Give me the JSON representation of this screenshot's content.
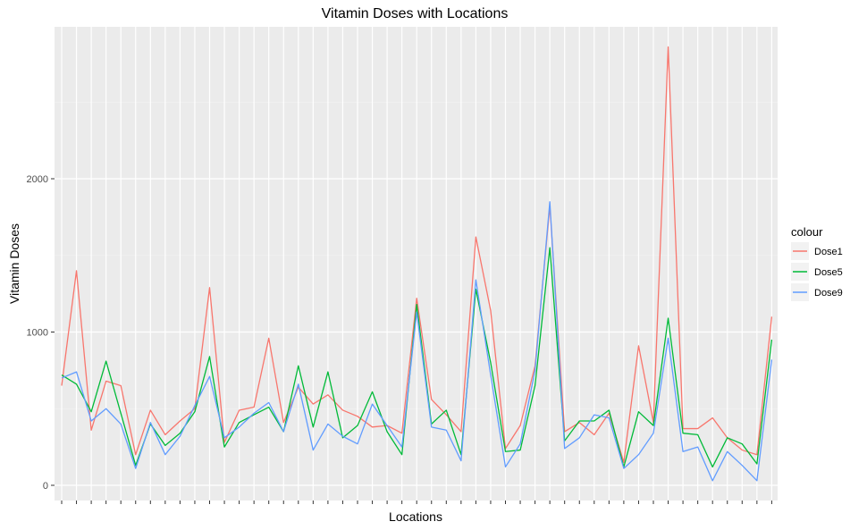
{
  "chart_data": {
    "type": "line",
    "title": "Vitamin Doses with Locations",
    "xlabel": "Locations",
    "ylabel": "Vitamin Doses",
    "ylim": [
      -100,
      3000
    ],
    "yticks": [
      0,
      1000,
      2000
    ],
    "grid": true,
    "legend": {
      "title": "colour",
      "position": "right"
    },
    "x_count": 49,
    "series": [
      {
        "name": "Dose1",
        "color": "#F8766D",
        "values": [
          650,
          1400,
          360,
          680,
          650,
          200,
          490,
          330,
          420,
          500,
          1290,
          280,
          490,
          510,
          960,
          410,
          640,
          530,
          590,
          490,
          450,
          380,
          390,
          340,
          1220,
          560,
          460,
          350,
          1620,
          1140,
          240,
          390,
          780,
          1820,
          350,
          410,
          330,
          470,
          150,
          910,
          410,
          2860,
          370,
          370,
          440,
          310,
          230,
          200,
          1100
        ]
      },
      {
        "name": "Dose5",
        "color": "#00BA38",
        "values": [
          720,
          660,
          480,
          810,
          470,
          130,
          400,
          260,
          340,
          480,
          840,
          250,
          410,
          460,
          510,
          350,
          780,
          380,
          740,
          310,
          390,
          610,
          350,
          200,
          1180,
          400,
          490,
          200,
          1280,
          800,
          220,
          230,
          650,
          1550,
          290,
          420,
          420,
          490,
          120,
          480,
          390,
          1090,
          340,
          330,
          120,
          310,
          270,
          140,
          950
        ]
      },
      {
        "name": "Dose9",
        "color": "#619CFF",
        "values": [
          700,
          740,
          420,
          500,
          400,
          110,
          410,
          200,
          320,
          520,
          710,
          310,
          380,
          470,
          540,
          350,
          660,
          230,
          400,
          320,
          270,
          530,
          390,
          250,
          1130,
          380,
          360,
          160,
          1340,
          720,
          120,
          270,
          750,
          1850,
          240,
          310,
          460,
          440,
          110,
          200,
          340,
          960,
          220,
          250,
          30,
          220,
          130,
          30,
          820
        ]
      }
    ]
  }
}
